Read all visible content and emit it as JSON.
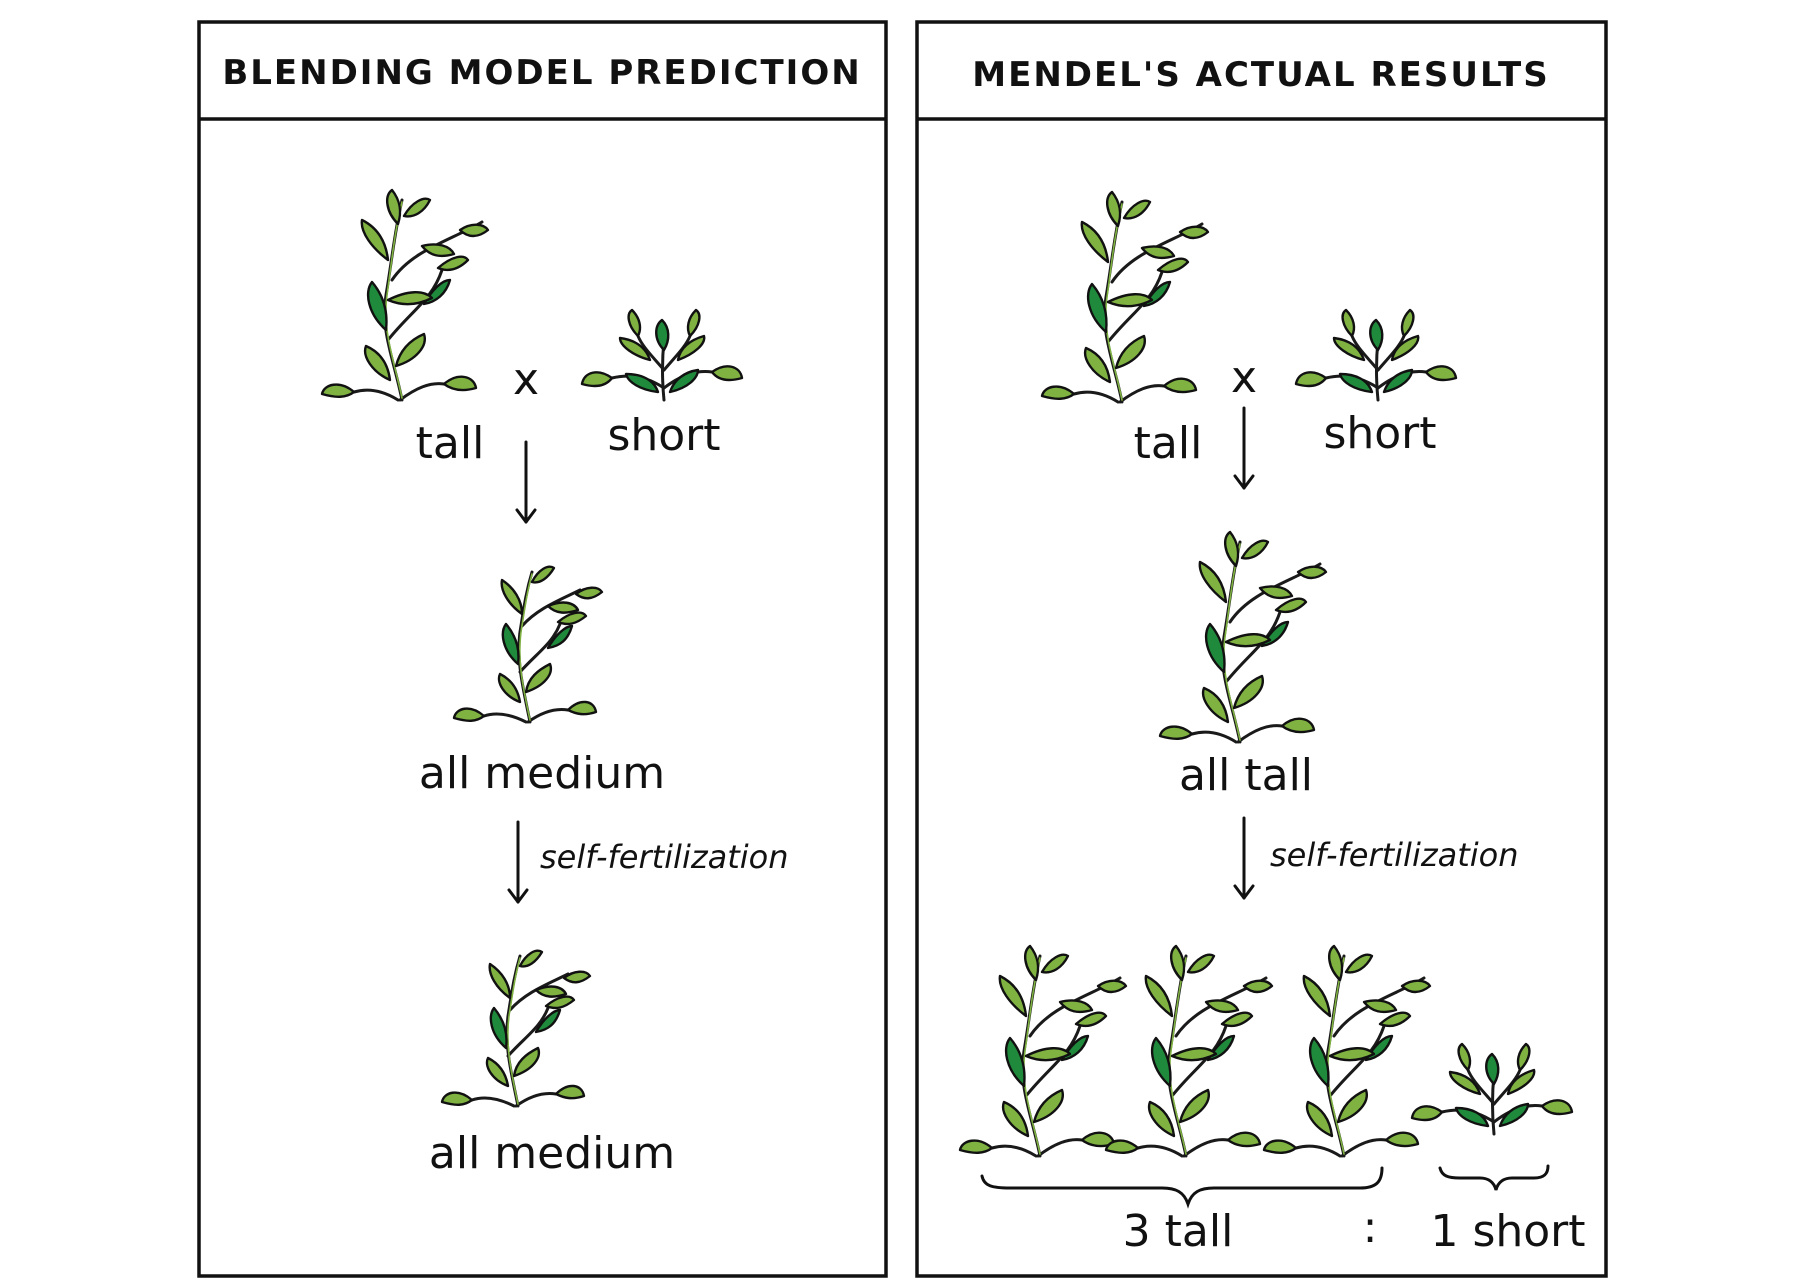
{
  "panels": [
    {
      "title": "BLENDING MODEL PREDICTION",
      "parents": {
        "left": "tall",
        "cross": "x",
        "right": "short"
      },
      "f1_label": "all medium",
      "process_label": "self-fertilization",
      "f2_label": "all medium"
    },
    {
      "title": "MENDEL'S ACTUAL RESULTS",
      "parents": {
        "left": "tall",
        "cross": "x",
        "right": "short"
      },
      "f1_label": "all tall",
      "process_label": "self-fertilization",
      "f2": {
        "tall_label": "3 tall",
        "separator": ":",
        "short_label": "1 short"
      }
    }
  ],
  "colors": {
    "leaf_light": "#7fb241",
    "leaf_dark": "#1f8a3c",
    "outline": "#111111"
  }
}
